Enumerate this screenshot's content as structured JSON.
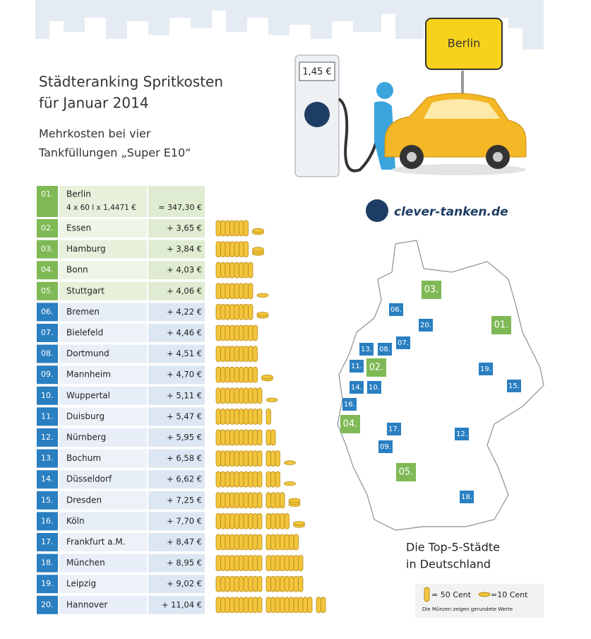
{
  "header": {
    "title_lines": [
      "Städteranking Spritkosten",
      "für Januar 2014"
    ],
    "subtitle_lines": [
      "Mehrkosten bei vier",
      "Tankfüllungen „Super E10“"
    ]
  },
  "illustration": {
    "price_sign": "1,45 €",
    "city_sign": "Berlin",
    "logo": "clever-tanken.de"
  },
  "table": {
    "rows": [
      {
        "rank": "01.",
        "city": "Berlin",
        "formula": "4 x 60 l x 1,4471 €",
        "value": 347.3,
        "value_label": "= 347,30 €"
      },
      {
        "rank": "02.",
        "city": "Essen",
        "value": 3.65,
        "value_label": "+ 3,65 €"
      },
      {
        "rank": "03.",
        "city": "Hamburg",
        "value": 3.84,
        "value_label": "+ 3,84 €"
      },
      {
        "rank": "04.",
        "city": "Bonn",
        "value": 4.03,
        "value_label": "+ 4,03 €"
      },
      {
        "rank": "05.",
        "city": "Stuttgart",
        "value": 4.06,
        "value_label": "+ 4,06 €"
      },
      {
        "rank": "06.",
        "city": "Bremen",
        "value": 4.22,
        "value_label": "+ 4,22 €"
      },
      {
        "rank": "07.",
        "city": "Bielefeld",
        "value": 4.46,
        "value_label": "+ 4,46 €"
      },
      {
        "rank": "08.",
        "city": "Dortmund",
        "value": 4.51,
        "value_label": "+ 4,51 €"
      },
      {
        "rank": "09.",
        "city": "Mannheim",
        "value": 4.7,
        "value_label": "+ 4,70 €"
      },
      {
        "rank": "10.",
        "city": "Wuppertal",
        "value": 5.11,
        "value_label": "+ 5,11 €"
      },
      {
        "rank": "11.",
        "city": "Duisburg",
        "value": 5.47,
        "value_label": "+ 5,47 €"
      },
      {
        "rank": "12.",
        "city": "Nürnberg",
        "value": 5.95,
        "value_label": "+ 5,95 €"
      },
      {
        "rank": "13.",
        "city": "Bochum",
        "value": 6.58,
        "value_label": "+ 6,58 €"
      },
      {
        "rank": "14.",
        "city": "Düsseldorf",
        "value": 6.62,
        "value_label": "+ 6,62 €"
      },
      {
        "rank": "15.",
        "city": "Dresden",
        "value": 7.25,
        "value_label": "+ 7,25 €"
      },
      {
        "rank": "16.",
        "city": "Köln",
        "value": 7.7,
        "value_label": "+ 7,70 €"
      },
      {
        "rank": "17.",
        "city": "Frankfurt a.M.",
        "value": 8.47,
        "value_label": "+ 8,47 €"
      },
      {
        "rank": "18.",
        "city": "München",
        "value": 8.95,
        "value_label": "+ 8,95 €"
      },
      {
        "rank": "19.",
        "city": "Leipzig",
        "value": 9.02,
        "value_label": "+ 9,02 €"
      },
      {
        "rank": "20.",
        "city": "Hannover",
        "value": 11.04,
        "value_label": "+ 11,04 €"
      }
    ]
  },
  "map": {
    "caption_lines": [
      "Die Top-5-Städte",
      "in Deutschland"
    ],
    "markers": [
      "03.",
      "06.",
      "20.",
      "01.",
      "07.",
      "13.",
      "08.",
      "11.",
      "02.",
      "19.",
      "15.",
      "14.",
      "10.",
      "16.",
      "04.",
      "17.",
      "12.",
      "09.",
      "05.",
      "18."
    ]
  },
  "legend": {
    "big_coin": "= 50 Cent",
    "small_coin": "=10 Cent",
    "note": "Die Münzen zeigen gerundete Werte"
  }
}
